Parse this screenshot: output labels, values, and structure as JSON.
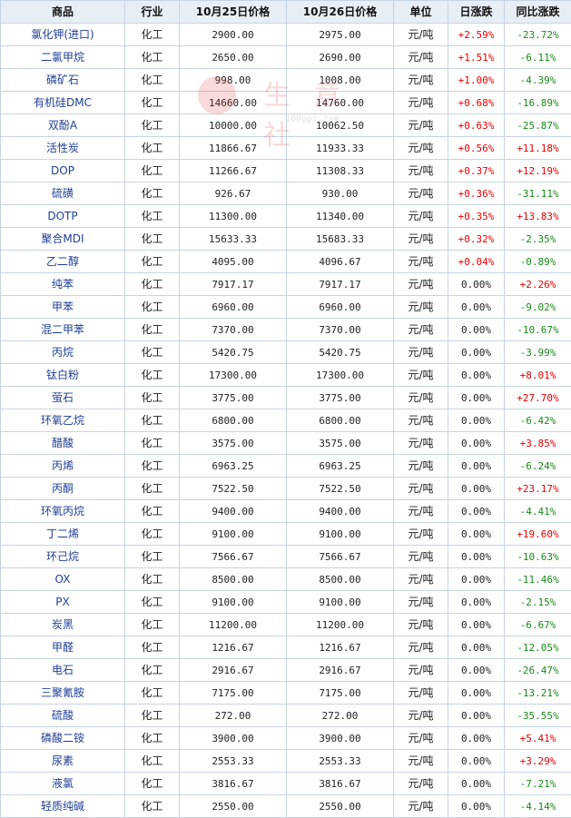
{
  "headers": {
    "name": "商品",
    "industry": "行业",
    "price1": "10月25日价格",
    "price2": "10月26日价格",
    "unit": "单位",
    "daily": "日涨跌",
    "yoy": "同比涨跌"
  },
  "watermark": {
    "text": "生 意 社",
    "url": "100ppi.com"
  },
  "colors": {
    "up": "#e60000",
    "down": "#1a8a1a",
    "header_bg": "#e8eef6",
    "border": "#c6d3e4",
    "name": "#1f3f96"
  },
  "rows": [
    {
      "name": "氯化钾(进口)",
      "ind": "化工",
      "p1": "2900.00",
      "p2": "2975.00",
      "unit": "元/吨",
      "d": "+2.59%",
      "y": "-23.72%"
    },
    {
      "name": "二氯甲烷",
      "ind": "化工",
      "p1": "2650.00",
      "p2": "2690.00",
      "unit": "元/吨",
      "d": "+1.51%",
      "y": "-6.11%"
    },
    {
      "name": "磷矿石",
      "ind": "化工",
      "p1": "998.00",
      "p2": "1008.00",
      "unit": "元/吨",
      "d": "+1.00%",
      "y": "-4.39%"
    },
    {
      "name": "有机硅DMC",
      "ind": "化工",
      "p1": "14660.00",
      "p2": "14760.00",
      "unit": "元/吨",
      "d": "+0.68%",
      "y": "-16.89%"
    },
    {
      "name": "双酚A",
      "ind": "化工",
      "p1": "10000.00",
      "p2": "10062.50",
      "unit": "元/吨",
      "d": "+0.63%",
      "y": "-25.87%"
    },
    {
      "name": "活性炭",
      "ind": "化工",
      "p1": "11866.67",
      "p2": "11933.33",
      "unit": "元/吨",
      "d": "+0.56%",
      "y": "+11.18%"
    },
    {
      "name": "DOP",
      "ind": "化工",
      "p1": "11266.67",
      "p2": "11308.33",
      "unit": "元/吨",
      "d": "+0.37%",
      "y": "+12.19%"
    },
    {
      "name": "硫磺",
      "ind": "化工",
      "p1": "926.67",
      "p2": "930.00",
      "unit": "元/吨",
      "d": "+0.36%",
      "y": "-31.11%"
    },
    {
      "name": "DOTP",
      "ind": "化工",
      "p1": "11300.00",
      "p2": "11340.00",
      "unit": "元/吨",
      "d": "+0.35%",
      "y": "+13.83%"
    },
    {
      "name": "聚合MDI",
      "ind": "化工",
      "p1": "15633.33",
      "p2": "15683.33",
      "unit": "元/吨",
      "d": "+0.32%",
      "y": "-2.35%"
    },
    {
      "name": "乙二醇",
      "ind": "化工",
      "p1": "4095.00",
      "p2": "4096.67",
      "unit": "元/吨",
      "d": "+0.04%",
      "y": "-0.89%"
    },
    {
      "name": "纯苯",
      "ind": "化工",
      "p1": "7917.17",
      "p2": "7917.17",
      "unit": "元/吨",
      "d": "0.00%",
      "y": "+2.26%"
    },
    {
      "name": "甲苯",
      "ind": "化工",
      "p1": "6960.00",
      "p2": "6960.00",
      "unit": "元/吨",
      "d": "0.00%",
      "y": "-9.02%"
    },
    {
      "name": "混二甲苯",
      "ind": "化工",
      "p1": "7370.00",
      "p2": "7370.00",
      "unit": "元/吨",
      "d": "0.00%",
      "y": "-10.67%"
    },
    {
      "name": "丙烷",
      "ind": "化工",
      "p1": "5420.75",
      "p2": "5420.75",
      "unit": "元/吨",
      "d": "0.00%",
      "y": "-3.99%"
    },
    {
      "name": "钛白粉",
      "ind": "化工",
      "p1": "17300.00",
      "p2": "17300.00",
      "unit": "元/吨",
      "d": "0.00%",
      "y": "+8.01%"
    },
    {
      "name": "萤石",
      "ind": "化工",
      "p1": "3775.00",
      "p2": "3775.00",
      "unit": "元/吨",
      "d": "0.00%",
      "y": "+27.70%"
    },
    {
      "name": "环氧乙烷",
      "ind": "化工",
      "p1": "6800.00",
      "p2": "6800.00",
      "unit": "元/吨",
      "d": "0.00%",
      "y": "-6.42%"
    },
    {
      "name": "醋酸",
      "ind": "化工",
      "p1": "3575.00",
      "p2": "3575.00",
      "unit": "元/吨",
      "d": "0.00%",
      "y": "+3.85%"
    },
    {
      "name": "丙烯",
      "ind": "化工",
      "p1": "6963.25",
      "p2": "6963.25",
      "unit": "元/吨",
      "d": "0.00%",
      "y": "-6.24%"
    },
    {
      "name": "丙酮",
      "ind": "化工",
      "p1": "7522.50",
      "p2": "7522.50",
      "unit": "元/吨",
      "d": "0.00%",
      "y": "+23.17%"
    },
    {
      "name": "环氧丙烷",
      "ind": "化工",
      "p1": "9400.00",
      "p2": "9400.00",
      "unit": "元/吨",
      "d": "0.00%",
      "y": "-4.41%"
    },
    {
      "name": "丁二烯",
      "ind": "化工",
      "p1": "9100.00",
      "p2": "9100.00",
      "unit": "元/吨",
      "d": "0.00%",
      "y": "+19.60%"
    },
    {
      "name": "环己烷",
      "ind": "化工",
      "p1": "7566.67",
      "p2": "7566.67",
      "unit": "元/吨",
      "d": "0.00%",
      "y": "-10.63%"
    },
    {
      "name": "OX",
      "ind": "化工",
      "p1": "8500.00",
      "p2": "8500.00",
      "unit": "元/吨",
      "d": "0.00%",
      "y": "-11.46%"
    },
    {
      "name": "PX",
      "ind": "化工",
      "p1": "9100.00",
      "p2": "9100.00",
      "unit": "元/吨",
      "d": "0.00%",
      "y": "-2.15%"
    },
    {
      "name": "炭黑",
      "ind": "化工",
      "p1": "11200.00",
      "p2": "11200.00",
      "unit": "元/吨",
      "d": "0.00%",
      "y": "-6.67%"
    },
    {
      "name": "甲醛",
      "ind": "化工",
      "p1": "1216.67",
      "p2": "1216.67",
      "unit": "元/吨",
      "d": "0.00%",
      "y": "-12.05%"
    },
    {
      "name": "电石",
      "ind": "化工",
      "p1": "2916.67",
      "p2": "2916.67",
      "unit": "元/吨",
      "d": "0.00%",
      "y": "-26.47%"
    },
    {
      "name": "三聚氰胺",
      "ind": "化工",
      "p1": "7175.00",
      "p2": "7175.00",
      "unit": "元/吨",
      "d": "0.00%",
      "y": "-13.21%"
    },
    {
      "name": "硫酸",
      "ind": "化工",
      "p1": "272.00",
      "p2": "272.00",
      "unit": "元/吨",
      "d": "0.00%",
      "y": "-35.55%"
    },
    {
      "name": "磷酸二铵",
      "ind": "化工",
      "p1": "3900.00",
      "p2": "3900.00",
      "unit": "元/吨",
      "d": "0.00%",
      "y": "+5.41%"
    },
    {
      "name": "尿素",
      "ind": "化工",
      "p1": "2553.33",
      "p2": "2553.33",
      "unit": "元/吨",
      "d": "0.00%",
      "y": "+3.29%"
    },
    {
      "name": "液氯",
      "ind": "化工",
      "p1": "3816.67",
      "p2": "3816.67",
      "unit": "元/吨",
      "d": "0.00%",
      "y": "-7.21%"
    },
    {
      "name": "轻质纯碱",
      "ind": "化工",
      "p1": "2550.00",
      "p2": "2550.00",
      "unit": "元/吨",
      "d": "0.00%",
      "y": "-4.14%"
    }
  ]
}
